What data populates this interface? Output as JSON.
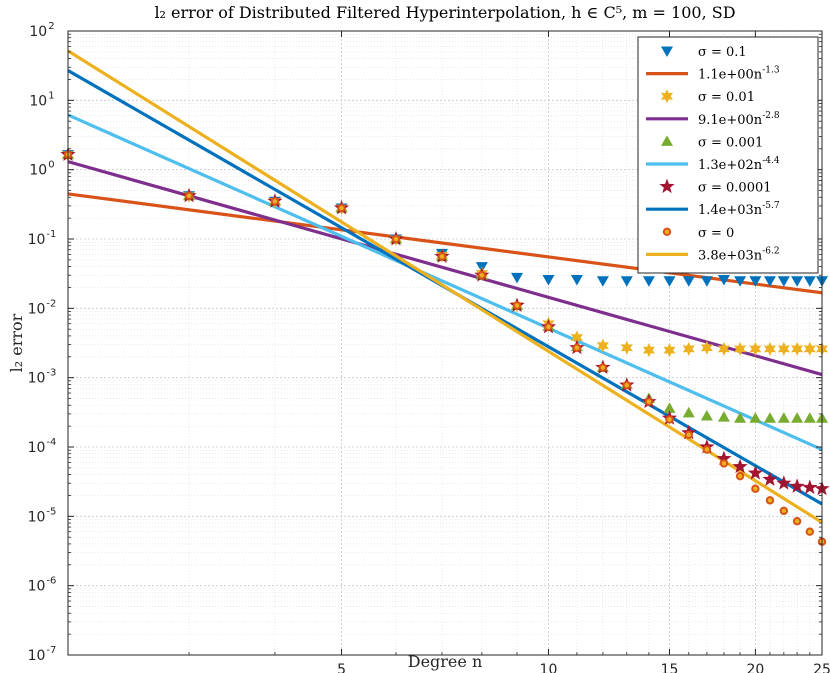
{
  "chart_data": {
    "type": "scatter",
    "title": "l₂ error of Distributed Filtered Hyperinterpolation, h ∈ C⁵, m = 100, SD",
    "xlabel": "Degree n",
    "ylabel": "l₂ error",
    "xscale": "log",
    "yscale": "log",
    "xlim": [
      2,
      25
    ],
    "ylim": [
      1e-07,
      100
    ],
    "xticks": [
      5,
      10,
      15,
      20,
      25
    ],
    "xtick_labels": [
      "5",
      "10",
      "15",
      "20",
      "25"
    ],
    "yticks": [
      1e-07,
      1e-06,
      1e-05,
      0.0001,
      0.001,
      0.01,
      0.1,
      1,
      10,
      100
    ],
    "ytick_labels": [
      {
        "base": "10",
        "exp": "-7"
      },
      {
        "base": "10",
        "exp": "-6"
      },
      {
        "base": "10",
        "exp": "-5"
      },
      {
        "base": "10",
        "exp": "-4"
      },
      {
        "base": "10",
        "exp": "-3"
      },
      {
        "base": "10",
        "exp": "-2"
      },
      {
        "base": "10",
        "exp": "-1"
      },
      {
        "base": "10",
        "exp": "0"
      },
      {
        "base": "10",
        "exp": "1"
      },
      {
        "base": "10",
        "exp": "2"
      }
    ],
    "grid": true,
    "minor_grid": true,
    "legend_position": "top-right",
    "x": [
      2,
      3,
      4,
      5,
      6,
      7,
      8,
      9,
      10,
      11,
      12,
      13,
      14,
      15,
      16,
      17,
      18,
      19,
      20,
      21,
      22,
      23,
      24,
      25
    ],
    "series": [
      {
        "name": "σ = 0.1",
        "kind": "scatter",
        "marker": "triangle-down",
        "color": "#0072BD",
        "values": [
          1.65,
          0.42,
          0.35,
          0.28,
          0.1,
          0.062,
          0.04,
          0.028,
          0.026,
          0.026,
          0.025,
          0.025,
          0.025,
          0.025,
          0.025,
          0.025,
          0.026,
          0.025,
          0.025,
          0.025,
          0.025,
          0.025,
          0.025,
          0.025
        ]
      },
      {
        "name": "1.1e+00n^-1.3",
        "kind": "line",
        "color": "#D95319",
        "coef": 1.1,
        "exponent": -1.3
      },
      {
        "name": "σ = 0.01",
        "kind": "scatter",
        "marker": "hexagram",
        "color": "#EDB120",
        "values": [
          1.65,
          0.42,
          0.35,
          0.28,
          0.1,
          0.058,
          0.032,
          0.011,
          0.006,
          0.0038,
          0.0029,
          0.0027,
          0.0025,
          0.0025,
          0.0026,
          0.0027,
          0.0026,
          0.0026,
          0.0026,
          0.0026,
          0.0026,
          0.0026,
          0.0026,
          0.0026
        ]
      },
      {
        "name": "9.1e+00n^-2.8",
        "kind": "line",
        "color": "#7E2F8E",
        "coef": 9.1,
        "exponent": -2.8
      },
      {
        "name": "σ = 0.001",
        "kind": "scatter",
        "marker": "triangle-up",
        "color": "#77AC30",
        "values": [
          1.65,
          0.42,
          0.35,
          0.28,
          0.1,
          0.056,
          0.03,
          0.011,
          0.0055,
          0.0028,
          0.0014,
          0.0008,
          0.0005,
          0.00036,
          0.00031,
          0.00028,
          0.00027,
          0.00026,
          0.00026,
          0.00026,
          0.00026,
          0.00026,
          0.00026,
          0.00026
        ]
      },
      {
        "name": "1.3e+02n^-4.4",
        "kind": "line",
        "color": "#4DBEEE",
        "coef": 130,
        "exponent": -4.4
      },
      {
        "name": "σ = 0.0001",
        "kind": "scatter",
        "marker": "pentagram",
        "color": "#A2142F",
        "values": [
          1.65,
          0.42,
          0.35,
          0.28,
          0.1,
          0.056,
          0.03,
          0.011,
          0.0054,
          0.0027,
          0.0014,
          0.00078,
          0.00045,
          0.00026,
          0.00016,
          0.0001,
          6.8e-05,
          5.2e-05,
          4.2e-05,
          3.4e-05,
          3e-05,
          2.7e-05,
          2.6e-05,
          2.5e-05
        ]
      },
      {
        "name": "1.4e+03n^-5.7",
        "kind": "line",
        "color": "#0072BD",
        "coef": 1400,
        "exponent": -5.7
      },
      {
        "name": "σ = 0",
        "kind": "scatter",
        "marker": "circle",
        "color": "#D95319",
        "values": [
          1.65,
          0.42,
          0.35,
          0.28,
          0.1,
          0.056,
          0.03,
          0.011,
          0.0054,
          0.0027,
          0.0014,
          0.00078,
          0.00045,
          0.00025,
          0.00015,
          9.2e-05,
          5.8e-05,
          3.8e-05,
          2.5e-05,
          1.7e-05,
          1.2e-05,
          8.5e-06,
          6e-06,
          4.3e-06
        ]
      },
      {
        "name": "3.8e+03n^-6.2",
        "kind": "line",
        "color": "#EDB120",
        "coef": 3800,
        "exponent": -6.2
      }
    ]
  }
}
